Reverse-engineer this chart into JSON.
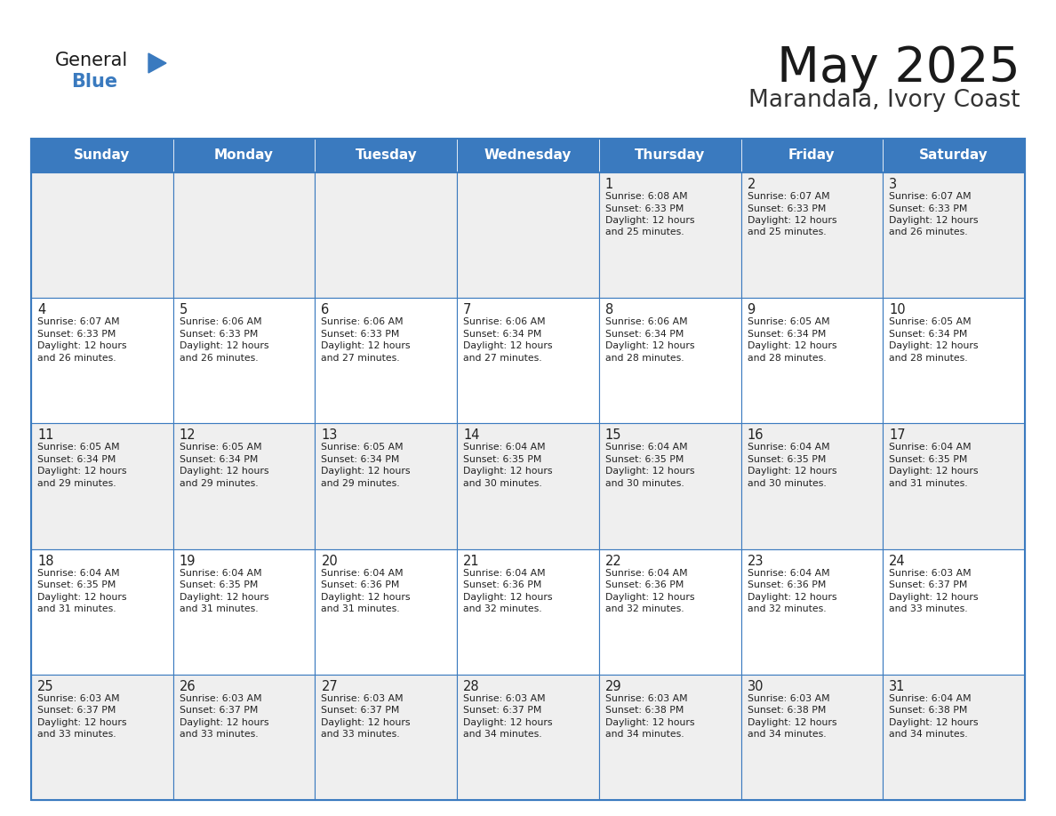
{
  "title": "May 2025",
  "subtitle": "Marandala, Ivory Coast",
  "days_of_week": [
    "Sunday",
    "Monday",
    "Tuesday",
    "Wednesday",
    "Thursday",
    "Friday",
    "Saturday"
  ],
  "header_bg": "#3a7abf",
  "header_text": "#ffffff",
  "cell_bg_gray": "#efefef",
  "cell_bg_white": "#ffffff",
  "cell_text": "#222222",
  "border_color": "#3a7abf",
  "title_color": "#1a1a1a",
  "subtitle_color": "#333333",
  "logo_general_color": "#1a1a1a",
  "logo_blue_color": "#3a7abf",
  "weeks": [
    [
      null,
      null,
      null,
      null,
      {
        "day": 1,
        "sunrise": "6:08 AM",
        "sunset": "6:33 PM",
        "daylight_h": "12 hours",
        "daylight_m": "25 minutes"
      },
      {
        "day": 2,
        "sunrise": "6:07 AM",
        "sunset": "6:33 PM",
        "daylight_h": "12 hours",
        "daylight_m": "25 minutes"
      },
      {
        "day": 3,
        "sunrise": "6:07 AM",
        "sunset": "6:33 PM",
        "daylight_h": "12 hours",
        "daylight_m": "26 minutes"
      }
    ],
    [
      {
        "day": 4,
        "sunrise": "6:07 AM",
        "sunset": "6:33 PM",
        "daylight_h": "12 hours",
        "daylight_m": "26 minutes"
      },
      {
        "day": 5,
        "sunrise": "6:06 AM",
        "sunset": "6:33 PM",
        "daylight_h": "12 hours",
        "daylight_m": "26 minutes"
      },
      {
        "day": 6,
        "sunrise": "6:06 AM",
        "sunset": "6:33 PM",
        "daylight_h": "12 hours",
        "daylight_m": "27 minutes"
      },
      {
        "day": 7,
        "sunrise": "6:06 AM",
        "sunset": "6:34 PM",
        "daylight_h": "12 hours",
        "daylight_m": "27 minutes"
      },
      {
        "day": 8,
        "sunrise": "6:06 AM",
        "sunset": "6:34 PM",
        "daylight_h": "12 hours",
        "daylight_m": "28 minutes"
      },
      {
        "day": 9,
        "sunrise": "6:05 AM",
        "sunset": "6:34 PM",
        "daylight_h": "12 hours",
        "daylight_m": "28 minutes"
      },
      {
        "day": 10,
        "sunrise": "6:05 AM",
        "sunset": "6:34 PM",
        "daylight_h": "12 hours",
        "daylight_m": "28 minutes"
      }
    ],
    [
      {
        "day": 11,
        "sunrise": "6:05 AM",
        "sunset": "6:34 PM",
        "daylight_h": "12 hours",
        "daylight_m": "29 minutes"
      },
      {
        "day": 12,
        "sunrise": "6:05 AM",
        "sunset": "6:34 PM",
        "daylight_h": "12 hours",
        "daylight_m": "29 minutes"
      },
      {
        "day": 13,
        "sunrise": "6:05 AM",
        "sunset": "6:34 PM",
        "daylight_h": "12 hours",
        "daylight_m": "29 minutes"
      },
      {
        "day": 14,
        "sunrise": "6:04 AM",
        "sunset": "6:35 PM",
        "daylight_h": "12 hours",
        "daylight_m": "30 minutes"
      },
      {
        "day": 15,
        "sunrise": "6:04 AM",
        "sunset": "6:35 PM",
        "daylight_h": "12 hours",
        "daylight_m": "30 minutes"
      },
      {
        "day": 16,
        "sunrise": "6:04 AM",
        "sunset": "6:35 PM",
        "daylight_h": "12 hours",
        "daylight_m": "30 minutes"
      },
      {
        "day": 17,
        "sunrise": "6:04 AM",
        "sunset": "6:35 PM",
        "daylight_h": "12 hours",
        "daylight_m": "31 minutes"
      }
    ],
    [
      {
        "day": 18,
        "sunrise": "6:04 AM",
        "sunset": "6:35 PM",
        "daylight_h": "12 hours",
        "daylight_m": "31 minutes"
      },
      {
        "day": 19,
        "sunrise": "6:04 AM",
        "sunset": "6:35 PM",
        "daylight_h": "12 hours",
        "daylight_m": "31 minutes"
      },
      {
        "day": 20,
        "sunrise": "6:04 AM",
        "sunset": "6:36 PM",
        "daylight_h": "12 hours",
        "daylight_m": "31 minutes"
      },
      {
        "day": 21,
        "sunrise": "6:04 AM",
        "sunset": "6:36 PM",
        "daylight_h": "12 hours",
        "daylight_m": "32 minutes"
      },
      {
        "day": 22,
        "sunrise": "6:04 AM",
        "sunset": "6:36 PM",
        "daylight_h": "12 hours",
        "daylight_m": "32 minutes"
      },
      {
        "day": 23,
        "sunrise": "6:04 AM",
        "sunset": "6:36 PM",
        "daylight_h": "12 hours",
        "daylight_m": "32 minutes"
      },
      {
        "day": 24,
        "sunrise": "6:03 AM",
        "sunset": "6:37 PM",
        "daylight_h": "12 hours",
        "daylight_m": "33 minutes"
      }
    ],
    [
      {
        "day": 25,
        "sunrise": "6:03 AM",
        "sunset": "6:37 PM",
        "daylight_h": "12 hours",
        "daylight_m": "33 minutes"
      },
      {
        "day": 26,
        "sunrise": "6:03 AM",
        "sunset": "6:37 PM",
        "daylight_h": "12 hours",
        "daylight_m": "33 minutes"
      },
      {
        "day": 27,
        "sunrise": "6:03 AM",
        "sunset": "6:37 PM",
        "daylight_h": "12 hours",
        "daylight_m": "33 minutes"
      },
      {
        "day": 28,
        "sunrise": "6:03 AM",
        "sunset": "6:37 PM",
        "daylight_h": "12 hours",
        "daylight_m": "34 minutes"
      },
      {
        "day": 29,
        "sunrise": "6:03 AM",
        "sunset": "6:38 PM",
        "daylight_h": "12 hours",
        "daylight_m": "34 minutes"
      },
      {
        "day": 30,
        "sunrise": "6:03 AM",
        "sunset": "6:38 PM",
        "daylight_h": "12 hours",
        "daylight_m": "34 minutes"
      },
      {
        "day": 31,
        "sunrise": "6:04 AM",
        "sunset": "6:38 PM",
        "daylight_h": "12 hours",
        "daylight_m": "34 minutes"
      }
    ]
  ]
}
